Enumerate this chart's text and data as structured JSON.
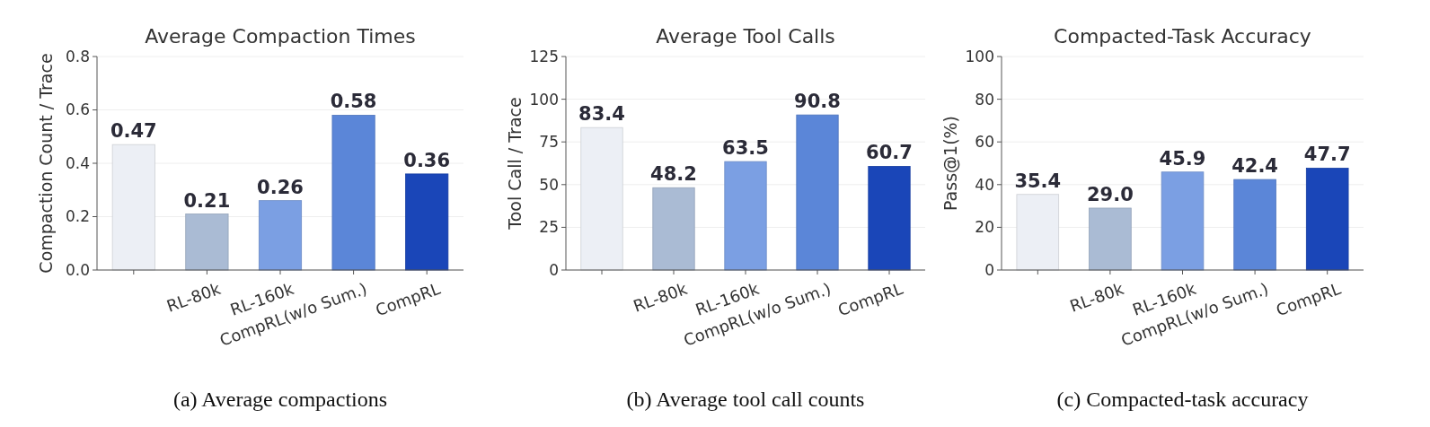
{
  "chart_data": [
    {
      "type": "bar",
      "title": "Average Compaction Times",
      "ylabel": "Compaction Count / Trace",
      "categories": [
        null,
        "RL-80k",
        "RL-160k",
        "CompRL(w/o Sum.)",
        "CompRL"
      ],
      "values": [
        0.47,
        0.21,
        0.26,
        0.58,
        0.36
      ],
      "colors": [
        "#eceff5",
        "#aabbd4",
        "#7b9fe3",
        "#5b86d8",
        "#1a46b8"
      ],
      "ylim": [
        0,
        0.8
      ],
      "yticks": [
        {
          "value": 0,
          "label": "0.0"
        },
        0.2,
        0.4,
        0.6,
        0.8
      ],
      "grid": "y",
      "data_labels": true,
      "annotations": [
        "(a) Average compactions"
      ]
    },
    {
      "type": "bar",
      "title": "Average Tool Calls",
      "ylabel": "Tool Call / Trace",
      "categories": [
        null,
        "RL-80k",
        "RL-160k",
        "CompRL(w/o Sum.)",
        "CompRL"
      ],
      "values": [
        83.4,
        48.2,
        63.5,
        90.8,
        60.7
      ],
      "colors": [
        "#eceff5",
        "#aabbd4",
        "#7b9fe3",
        "#5b86d8",
        "#1a46b8"
      ],
      "ylim": [
        0,
        125
      ],
      "yticks": [
        0,
        25,
        50,
        75,
        100,
        125
      ],
      "grid": "y",
      "data_labels": true,
      "annotations": [
        "(b) Average tool call counts"
      ]
    },
    {
      "type": "bar",
      "title": "Compacted-Task Accuracy",
      "ylabel": "Pass@1(%)",
      "categories": [
        null,
        "RL-80k",
        "RL-160k",
        "CompRL(w/o Sum.)",
        "CompRL"
      ],
      "values": [
        35.4,
        29.0,
        45.9,
        42.4,
        47.7
      ],
      "value_labels": [
        "35.4",
        "29.0",
        "45.9",
        "42.4",
        "47.7"
      ],
      "colors": [
        "#eceff5",
        "#aabbd4",
        "#7b9fe3",
        "#5b86d8",
        "#1a46b8"
      ],
      "ylim": [
        0,
        100
      ],
      "yticks": [
        0,
        20,
        40,
        60,
        80,
        100
      ],
      "grid": "y",
      "annotations": [
        "(c) Compacted-task accuracy"
      ]
    }
  ]
}
